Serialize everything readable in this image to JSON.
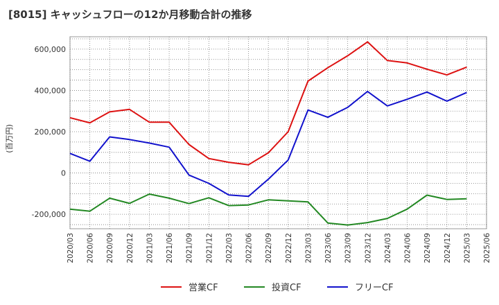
{
  "chart_data": {
    "type": "line",
    "title": "[8015]  キャッシュフローの12か月移動合計の推移",
    "ylabel": "(百万円)",
    "xlabel": "",
    "ylim": [
      -270000,
      660000
    ],
    "yticks": [
      -200000,
      0,
      200000,
      400000,
      600000
    ],
    "ytick_labels": [
      "-200,000",
      "0",
      "200,000",
      "400,000",
      "600,000"
    ],
    "categories": [
      "2020/03",
      "2020/06",
      "2020/09",
      "2020/12",
      "2021/03",
      "2021/06",
      "2021/09",
      "2021/12",
      "2022/03",
      "2022/06",
      "2022/09",
      "2022/12",
      "2023/03",
      "2023/06",
      "2023/09",
      "2023/12",
      "2024/03",
      "2024/06",
      "2024/09",
      "2024/12",
      "2025/03",
      "2025/06"
    ],
    "grid": true,
    "legend_position": "bottom",
    "series": [
      {
        "name": "営業CF",
        "color": "#dd1111",
        "values": [
          268000,
          243000,
          296000,
          308000,
          246000,
          246000,
          138000,
          70000,
          52000,
          40000,
          98000,
          200000,
          445000,
          510000,
          568000,
          635000,
          545000,
          533000,
          503000,
          475000,
          513000,
          null
        ]
      },
      {
        "name": "投資CF",
        "color": "#228822",
        "values": [
          -175000,
          -185000,
          -122000,
          -147000,
          -102000,
          -122000,
          -148000,
          -120000,
          -158000,
          -155000,
          -130000,
          -135000,
          -140000,
          -242000,
          -252000,
          -240000,
          -220000,
          -175000,
          -107000,
          -128000,
          -125000,
          null
        ]
      },
      {
        "name": "フリーCF",
        "color": "#1111cc",
        "values": [
          95000,
          57000,
          175000,
          162000,
          145000,
          125000,
          -10000,
          -50000,
          -106000,
          -113000,
          -30000,
          63000,
          305000,
          270000,
          318000,
          395000,
          325000,
          357000,
          392000,
          348000,
          390000,
          null
        ]
      }
    ]
  }
}
